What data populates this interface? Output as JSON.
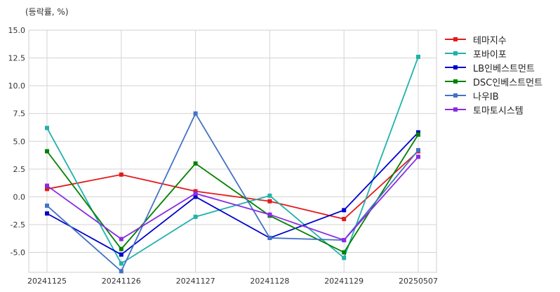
{
  "chart_data": {
    "type": "line",
    "unit_label": "(등락률, %)",
    "categories": [
      "20241125",
      "20241126",
      "20241127",
      "20241128",
      "20241129",
      "20250507"
    ],
    "ylim": [
      -6.8,
      15.0
    ],
    "yticks": [
      "15.0",
      "12.5",
      "10.0",
      "7.5",
      "5.0",
      "2.5",
      "0.0",
      "-2.5",
      "-5.0"
    ],
    "ytick_values": [
      15.0,
      12.5,
      10.0,
      7.5,
      5.0,
      2.5,
      0.0,
      -2.5,
      -5.0
    ],
    "grid": true,
    "legend_position": "right",
    "series": [
      {
        "name": "테마지수",
        "color": "#e31a1c",
        "values": [
          0.7,
          2.0,
          0.5,
          -0.4,
          -2.0,
          4.1
        ]
      },
      {
        "name": "포바이포",
        "color": "#20b2aa",
        "values": [
          6.2,
          -6.0,
          -1.8,
          0.1,
          -5.5,
          12.6
        ]
      },
      {
        "name": "LB인베스트먼트",
        "color": "#0000cd",
        "values": [
          -1.5,
          -5.2,
          0.0,
          -3.7,
          -1.2,
          5.8
        ]
      },
      {
        "name": "DSC인베스트먼트",
        "color": "#008000",
        "values": [
          4.1,
          -4.7,
          3.0,
          -1.7,
          -5.0,
          5.6
        ]
      },
      {
        "name": "나우IB",
        "color": "#4472c4",
        "values": [
          -0.8,
          -6.7,
          7.5,
          -3.7,
          -3.9,
          4.2
        ]
      },
      {
        "name": "토마토시스템",
        "color": "#8a2be2",
        "values": [
          1.0,
          -3.8,
          0.3,
          -1.6,
          -3.9,
          3.6
        ]
      }
    ]
  }
}
